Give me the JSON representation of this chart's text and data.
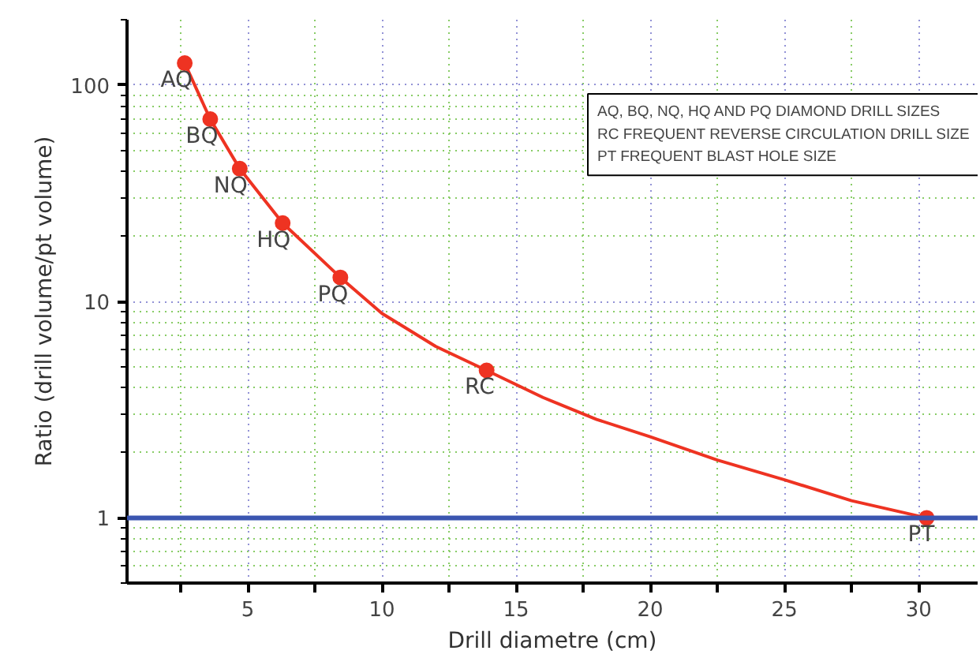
{
  "chart_data": {
    "type": "line",
    "xlabel": "Drill diametre (cm)",
    "ylabel": "Ratio (drill volume/pt volume)",
    "log": "y",
    "xlim": [
      0.5,
      32.2
    ],
    "ylim": [
      0.5,
      200
    ],
    "xticks": [
      {
        "value": 2.5,
        "label": null
      },
      5,
      {
        "value": 7.5,
        "label": null
      },
      10,
      {
        "value": 12.5,
        "label": null
      },
      15,
      {
        "value": 17.5,
        "label": null
      },
      20,
      {
        "value": 22.5,
        "label": null
      },
      25,
      {
        "value": 27.5,
        "label": null
      },
      30
    ],
    "yticks": [
      1,
      10,
      100
    ],
    "grid": true,
    "series": [
      {
        "type": "line",
        "color": "#ee3322",
        "x": [
          2.65,
          3.6,
          4.7,
          6.3,
          8.45,
          10,
          12,
          13.9,
          16,
          18,
          20,
          22.5,
          25,
          27.5,
          30.3
        ],
        "values": [
          126,
          69.5,
          41,
          23,
          12.9,
          8.8,
          6.2,
          4.8,
          3.6,
          2.85,
          2.37,
          1.85,
          1.5,
          1.2,
          1
        ]
      },
      {
        "type": "scatter",
        "color": "#ee3322",
        "x": [
          2.65,
          3.6,
          4.7,
          6.3,
          8.45,
          13.9,
          30.3
        ],
        "values": [
          126,
          69.5,
          41,
          23,
          12.9,
          4.8,
          1
        ]
      }
    ],
    "ref_lines": [
      {
        "axis": "y",
        "value": 1,
        "color": "#3a55b0"
      }
    ],
    "annotations": [
      {
        "text": "AQ",
        "x": 2.65,
        "y": 126
      },
      {
        "text": "BQ",
        "x": 3.6,
        "y": 69.5
      },
      {
        "text": "NQ",
        "x": 4.7,
        "y": 41
      },
      {
        "text": "HQ",
        "x": 6.3,
        "y": 23
      },
      {
        "text": "PQ",
        "x": 8.45,
        "y": 12.9
      },
      {
        "text": "RC",
        "x": 13.9,
        "y": 4.8
      },
      {
        "text": "PT",
        "x": 30.3,
        "y": 1
      },
      "AQ, BQ, NQ, HQ AND PQ DIAMOND DRILL SIZES",
      "RC FREQUENT REVERSE CIRCULATION DRILL SIZE",
      "PT FREQUENT BLAST HOLE SIZE"
    ]
  }
}
